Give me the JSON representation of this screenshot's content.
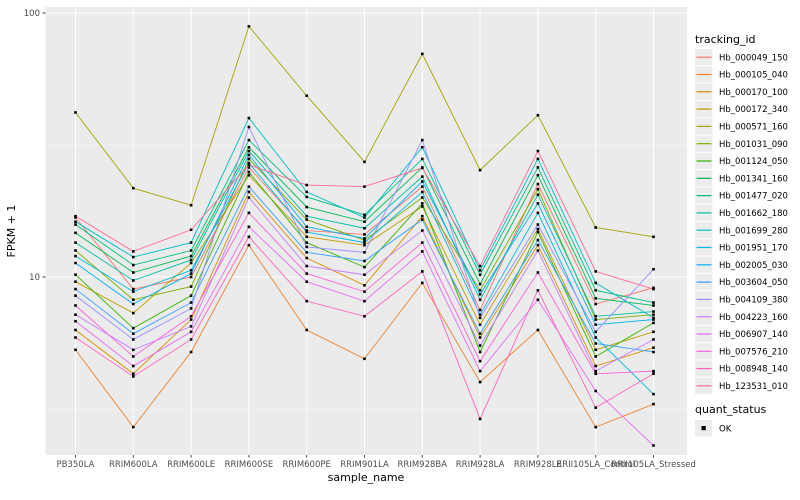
{
  "colors": {
    "panel_bg": "#EBEBEB",
    "grid_major": "#FFFFFF",
    "grid_minor": "#F6F6F6",
    "tick_label": "#4D4D4D",
    "axis_title": "#000000",
    "tick_mark": "#333333",
    "legend_key_bg": "#ECECEC",
    "point_color": "#000000"
  },
  "chart_data": {
    "type": "line",
    "title": "",
    "xlabel": "sample_name",
    "ylabel": "FPKM + 1",
    "legend_title": "tracking_id",
    "legend2_title": "quant_status",
    "legend2_items": [
      {
        "label": "OK",
        "marker": "black-square"
      }
    ],
    "x_categories": [
      "PB350LA",
      "RRIM600LA",
      "RRIM600LE",
      "RRIM600SE",
      "RRIM600PE",
      "RRIM901LA",
      "RRIM928BA",
      "RRIM928LA",
      "RRIM928LE",
      "RRII105LA_Control",
      "RRII105LA_Stressed"
    ],
    "y_axis": {
      "scale": "log10",
      "ticks": [
        10,
        100
      ],
      "tick_labels": [
        "10",
        "100"
      ],
      "minor_gridlines": [
        3.162,
        31.62
      ],
      "range": [
        2.1,
        106
      ]
    },
    "point_shape": "square",
    "grid": true,
    "legend_position": "right",
    "series": [
      {
        "name": "Hb_000049_150",
        "color": "#F8766D",
        "values": [
          16.8,
          9.0,
          10.0,
          26.0,
          15.0,
          14.5,
          22.0,
          7.5,
          22.5,
          7.9,
          9.1
        ]
      },
      {
        "name": "Hb_000105_040",
        "color": "#EA8331",
        "values": [
          5.3,
          2.7,
          5.2,
          13.2,
          6.3,
          4.9,
          9.5,
          4.0,
          6.3,
          2.7,
          3.3
        ]
      },
      {
        "name": "Hb_000170_100",
        "color": "#D89000",
        "values": [
          6.3,
          4.3,
          6.9,
          21.0,
          11.8,
          9.3,
          17.0,
          5.9,
          13.2,
          4.6,
          5.4
        ]
      },
      {
        "name": "Hb_000172_340",
        "color": "#C09B00",
        "values": [
          9.6,
          7.3,
          11.3,
          24.3,
          14.2,
          13.2,
          18.5,
          6.6,
          15.2,
          5.3,
          6.2
        ]
      },
      {
        "name": "Hb_000571_160",
        "color": "#A3A500",
        "values": [
          42.0,
          21.7,
          18.7,
          89.0,
          48.6,
          27.3,
          70.0,
          25.4,
          41.0,
          15.4,
          14.2
        ]
      },
      {
        "name": "Hb_001031_090",
        "color": "#7CAE00",
        "values": [
          12.6,
          8.2,
          9.2,
          28.0,
          16.5,
          13.8,
          20.0,
          8.9,
          21.5,
          6.9,
          7.2
        ]
      },
      {
        "name": "Hb_001124_050",
        "color": "#39B600",
        "values": [
          10.2,
          6.4,
          8.5,
          25.0,
          13.5,
          10.9,
          19.0,
          5.2,
          14.8,
          5.0,
          6.7
        ]
      },
      {
        "name": "Hb_001341_160",
        "color": "#00BB4E",
        "values": [
          14.7,
          10.4,
          12.0,
          31.0,
          18.4,
          16.2,
          26.0,
          9.4,
          24.3,
          8.3,
          7.8
        ]
      },
      {
        "name": "Hb_001477_020",
        "color": "#00BF7D",
        "values": [
          15.8,
          11.1,
          12.6,
          33.0,
          20.1,
          17.2,
          28.0,
          10.2,
          26.0,
          8.9,
          8.0
        ]
      },
      {
        "name": "Hb_001662_180",
        "color": "#00C1A3",
        "values": [
          13.5,
          9.7,
          11.6,
          30.0,
          17.0,
          15.3,
          24.0,
          8.2,
          20.5,
          7.1,
          7.4
        ]
      },
      {
        "name": "Hb_001699_280",
        "color": "#00BFC4",
        "values": [
          16.2,
          11.9,
          13.5,
          40.0,
          21.0,
          16.8,
          31.0,
          10.6,
          28.0,
          9.5,
          7.0
        ]
      },
      {
        "name": "Hb_001951_170",
        "color": "#00BAE0",
        "values": [
          12.0,
          8.8,
          10.6,
          27.0,
          14.8,
          13.5,
          21.0,
          7.2,
          17.5,
          5.9,
          3.6
        ]
      },
      {
        "name": "Hb_002005_030",
        "color": "#00B0F6",
        "values": [
          11.3,
          7.9,
          10.3,
          29.0,
          15.5,
          14.0,
          23.0,
          8.6,
          19.0,
          6.6,
          6.9
        ]
      },
      {
        "name": "Hb_003604_050",
        "color": "#35A2FF",
        "values": [
          9.0,
          6.1,
          8.0,
          22.0,
          12.4,
          11.5,
          16.5,
          6.1,
          13.8,
          5.6,
          5.2
        ]
      },
      {
        "name": "Hb_004109_380",
        "color": "#9590FF",
        "values": [
          8.5,
          5.8,
          7.6,
          37.0,
          13.0,
          12.4,
          33.0,
          7.0,
          15.8,
          6.2,
          10.7
        ]
      },
      {
        "name": "Hb_004223_160",
        "color": "#C77CFF",
        "values": [
          7.2,
          5.3,
          6.5,
          20.0,
          11.0,
          10.2,
          15.0,
          5.5,
          12.6,
          4.4,
          5.8
        ]
      },
      {
        "name": "Hb_006907_140",
        "color": "#E76BF3",
        "values": [
          6.8,
          4.6,
          6.2,
          15.5,
          9.6,
          8.1,
          12.5,
          4.4,
          8.2,
          3.7,
          2.3
        ]
      },
      {
        "name": "Hb_007576_210",
        "color": "#FA62DB",
        "values": [
          7.8,
          5.0,
          7.1,
          17.5,
          10.3,
          8.8,
          13.5,
          4.8,
          10.4,
          4.3,
          4.4
        ]
      },
      {
        "name": "Hb_008948_140",
        "color": "#FF62BC",
        "values": [
          5.9,
          4.2,
          5.8,
          14.2,
          8.1,
          7.1,
          10.5,
          2.9,
          8.9,
          3.2,
          4.3
        ]
      },
      {
        "name": "Hb_123531_010",
        "color": "#FF6A98",
        "values": [
          17.0,
          12.5,
          15.1,
          26.6,
          22.3,
          22.0,
          25.9,
          11.0,
          30.0,
          10.5,
          9.0
        ]
      }
    ]
  }
}
